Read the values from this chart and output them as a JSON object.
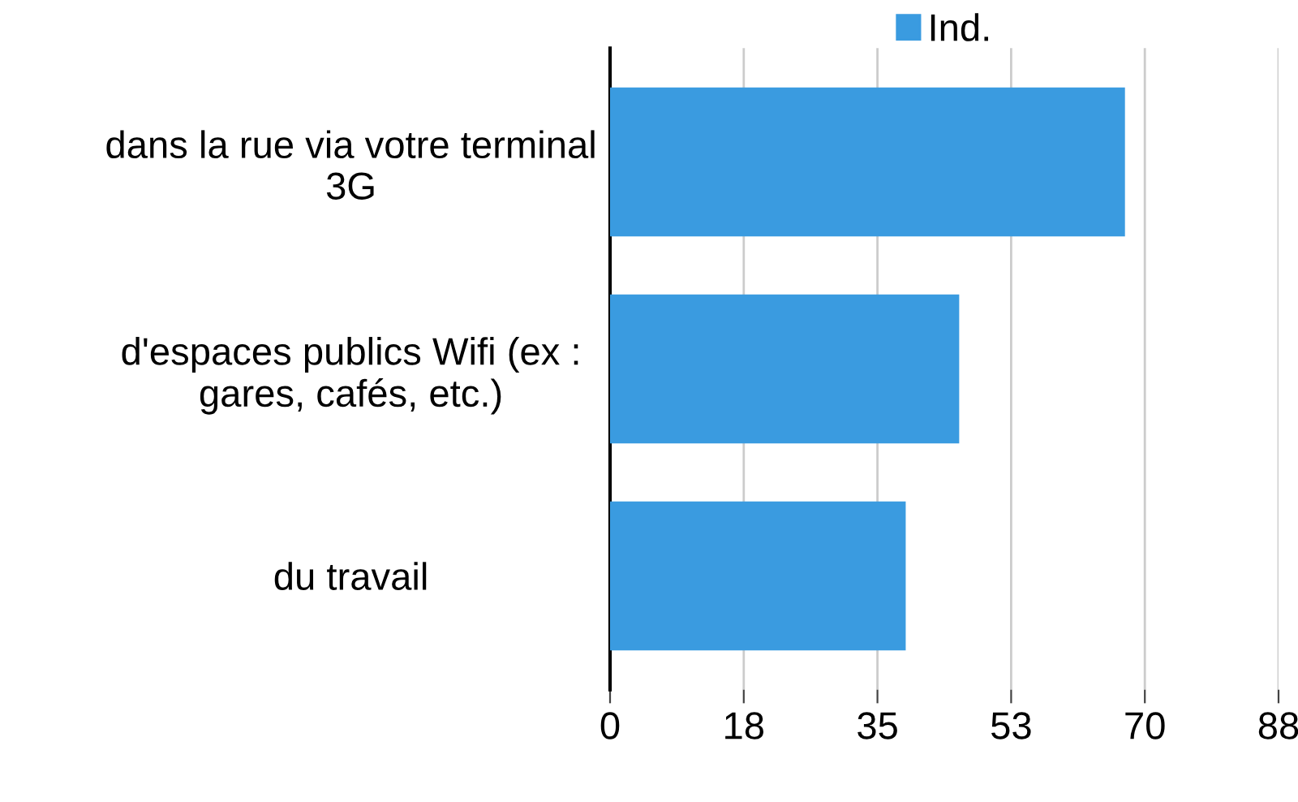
{
  "chart_data": {
    "type": "bar",
    "orientation": "horizontal",
    "categories": [
      "dans la rue via votre terminal\n3G",
      "d'espaces publics Wifi (ex :\ngares, cafés, etc.)",
      "du travail"
    ],
    "series": [
      {
        "name": "Ind.",
        "color": "#3a9be0",
        "values": [
          67.4,
          45.7,
          38.7
        ]
      }
    ],
    "xlim": [
      0,
      87.5
    ],
    "xticks": [
      0,
      {
        "value": 17.5,
        "label": "18"
      },
      35,
      {
        "value": 52.5,
        "label": "53"
      },
      70,
      {
        "value": 87.5,
        "label": "88"
      }
    ],
    "grid": "x",
    "legend": "top"
  }
}
